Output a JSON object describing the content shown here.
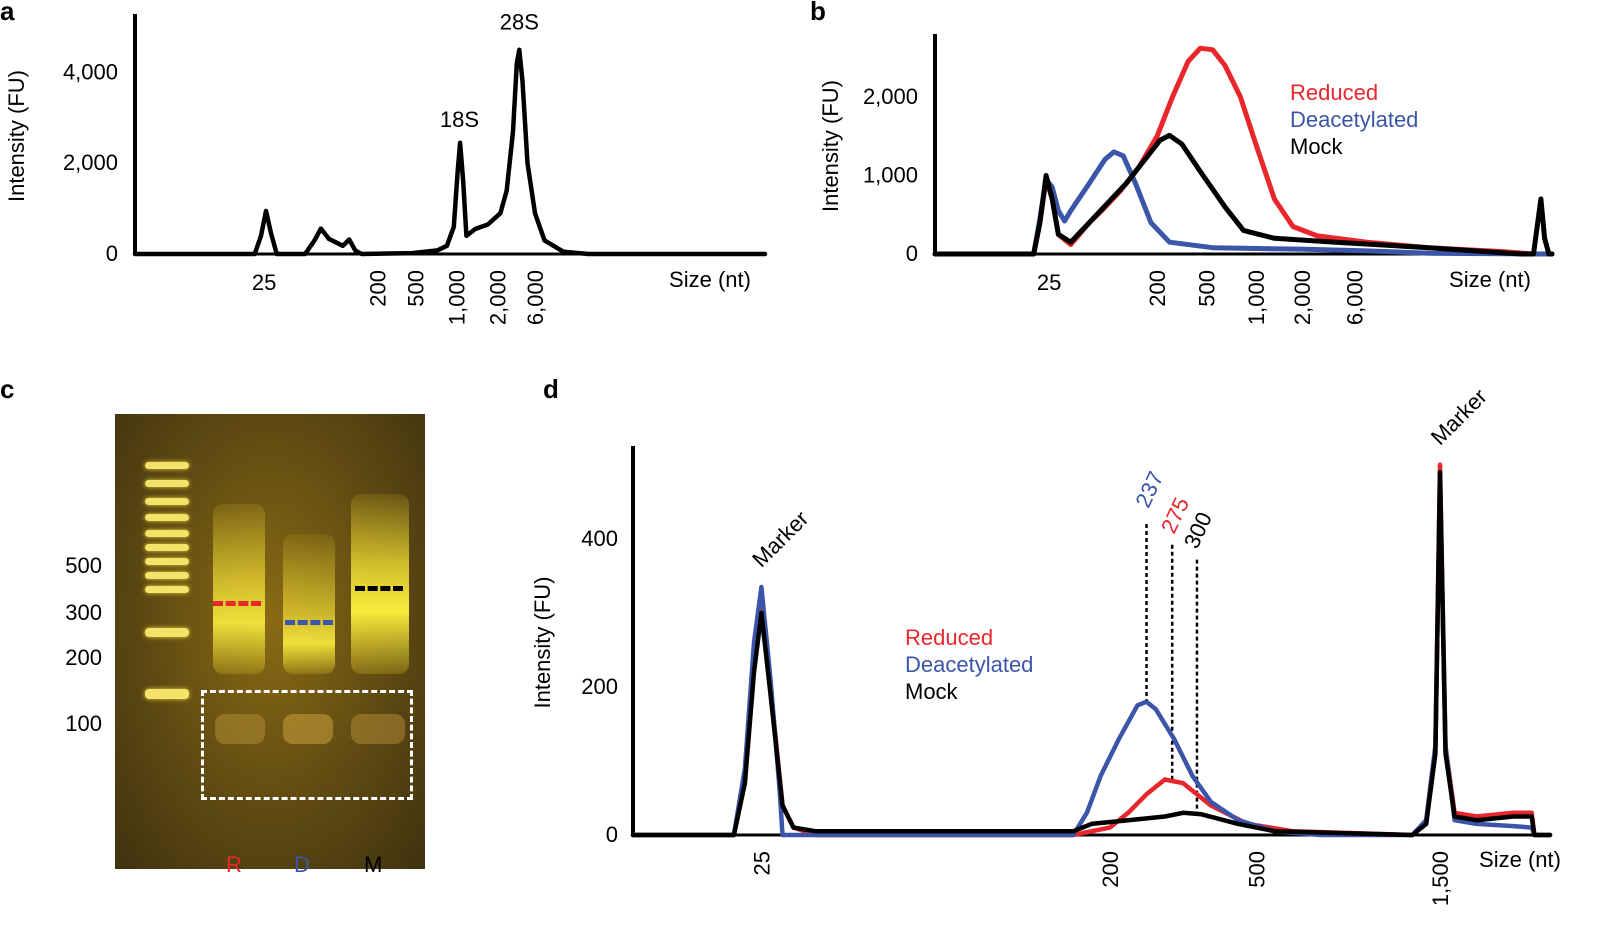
{
  "panels": {
    "a": "a",
    "b": "b",
    "c": "c",
    "d": "d"
  },
  "colors": {
    "reduced": "#e8262b",
    "deacetylated": "#3b56a8",
    "mock": "#000000"
  },
  "chart_data": [
    {
      "id": "a",
      "type": "line",
      "ylabel": "Intensity (FU)",
      "xlabel": "Size (nt)",
      "ylim": [
        0,
        5200
      ],
      "yticks": [
        {
          "v": 0,
          "label": "0"
        },
        {
          "v": 2000,
          "label": "2,000"
        },
        {
          "v": 4000,
          "label": "4,000"
        }
      ],
      "xticks": [
        {
          "t": 20.5,
          "label": "25"
        },
        {
          "t": 38.5,
          "label": "200"
        },
        {
          "t": 44.5,
          "label": "500"
        },
        {
          "t": 51,
          "label": "1,000"
        },
        {
          "t": 57.5,
          "label": "2,000"
        },
        {
          "t": 63.5,
          "label": "6,000"
        }
      ],
      "annotations": [
        {
          "text": "18S",
          "t": 51.5,
          "v": 2800
        },
        {
          "text": "28S",
          "t": 61,
          "v": 4950
        }
      ],
      "series": [
        {
          "name": "RNA",
          "color": "mock",
          "points": [
            [
              0,
              0
            ],
            [
              19,
              0
            ],
            [
              20,
              400
            ],
            [
              20.8,
              950
            ],
            [
              21.6,
              450
            ],
            [
              22.5,
              0
            ],
            [
              27,
              0
            ],
            [
              28.5,
              300
            ],
            [
              29.5,
              560
            ],
            [
              30.8,
              330
            ],
            [
              32,
              250
            ],
            [
              33,
              180
            ],
            [
              34,
              320
            ],
            [
              35,
              70
            ],
            [
              36,
              0
            ],
            [
              44,
              20
            ],
            [
              48,
              80
            ],
            [
              49.5,
              180
            ],
            [
              50.6,
              600
            ],
            [
              51.2,
              1800
            ],
            [
              51.6,
              2450
            ],
            [
              52.1,
              1600
            ],
            [
              52.6,
              400
            ],
            [
              54,
              550
            ],
            [
              56,
              650
            ],
            [
              58,
              900
            ],
            [
              59,
              1400
            ],
            [
              60,
              2700
            ],
            [
              60.6,
              4200
            ],
            [
              61,
              4500
            ],
            [
              61.5,
              3800
            ],
            [
              62.3,
              2000
            ],
            [
              63.5,
              900
            ],
            [
              65,
              300
            ],
            [
              68,
              50
            ],
            [
              72,
              0
            ],
            [
              100,
              0
            ]
          ]
        }
      ]
    },
    {
      "id": "b",
      "type": "line",
      "ylabel": "Intensity (FU)",
      "xlabel": "Size (nt)",
      "ylim": [
        0,
        2750
      ],
      "yticks": [
        {
          "v": 0,
          "label": "0"
        },
        {
          "v": 1000,
          "label": "1,000"
        },
        {
          "v": 2000,
          "label": "2,000"
        }
      ],
      "xticks": [
        {
          "t": 18.5,
          "label": "25"
        },
        {
          "t": 36,
          "label": "200"
        },
        {
          "t": 44,
          "label": "500"
        },
        {
          "t": 52,
          "label": "1,000"
        },
        {
          "t": 59.5,
          "label": "2,000"
        },
        {
          "t": 68,
          "label": "6,000"
        }
      ],
      "legend": [
        {
          "text": "Reduced",
          "color": "reduced"
        },
        {
          "text": "Deacetylated",
          "color": "deacetylated"
        },
        {
          "text": "Mock",
          "color": "mock"
        }
      ],
      "series": [
        {
          "name": "Reduced",
          "color": "reduced",
          "points": [
            [
              0,
              0
            ],
            [
              16,
              0
            ],
            [
              17,
              400
            ],
            [
              18,
              950
            ],
            [
              19,
              700
            ],
            [
              20,
              250
            ],
            [
              22,
              120
            ],
            [
              25,
              400
            ],
            [
              27,
              550
            ],
            [
              30,
              800
            ],
            [
              33,
              1100
            ],
            [
              36,
              1500
            ],
            [
              38.5,
              2000
            ],
            [
              41,
              2450
            ],
            [
              43,
              2620
            ],
            [
              45,
              2600
            ],
            [
              47,
              2400
            ],
            [
              49.5,
              2000
            ],
            [
              52,
              1400
            ],
            [
              55,
              700
            ],
            [
              58,
              350
            ],
            [
              62,
              230
            ],
            [
              70,
              150
            ],
            [
              80,
              80
            ],
            [
              92,
              30
            ],
            [
              97,
              0
            ],
            [
              100,
              0
            ]
          ]
        },
        {
          "name": "Deacetylated",
          "color": "deacetylated",
          "points": [
            [
              0,
              0
            ],
            [
              16,
              0
            ],
            [
              17,
              450
            ],
            [
              18,
              950
            ],
            [
              19,
              850
            ],
            [
              20,
              550
            ],
            [
              21,
              420
            ],
            [
              22,
              550
            ],
            [
              25,
              900
            ],
            [
              27.5,
              1200
            ],
            [
              29,
              1300
            ],
            [
              30.5,
              1250
            ],
            [
              32.5,
              900
            ],
            [
              35,
              400
            ],
            [
              38,
              150
            ],
            [
              45,
              80
            ],
            [
              60,
              60
            ],
            [
              70,
              40
            ],
            [
              80,
              10
            ],
            [
              100,
              0
            ]
          ]
        },
        {
          "name": "Mock",
          "color": "mock",
          "points": [
            [
              0,
              0
            ],
            [
              16,
              0
            ],
            [
              17,
              400
            ],
            [
              18,
              1000
            ],
            [
              19,
              700
            ],
            [
              20,
              250
            ],
            [
              22,
              150
            ],
            [
              25,
              400
            ],
            [
              28,
              650
            ],
            [
              31,
              900
            ],
            [
              34,
              1200
            ],
            [
              36.5,
              1450
            ],
            [
              38,
              1510
            ],
            [
              40,
              1400
            ],
            [
              43,
              1050
            ],
            [
              47,
              600
            ],
            [
              50,
              300
            ],
            [
              55,
              200
            ],
            [
              65,
              150
            ],
            [
              80,
              80
            ],
            [
              95,
              0
            ],
            [
              97,
              0
            ],
            [
              98.2,
              700
            ],
            [
              98.8,
              200
            ],
            [
              99.5,
              0
            ],
            [
              100,
              0
            ]
          ]
        }
      ]
    },
    {
      "id": "d",
      "type": "line",
      "ylabel": "Intensity (FU)",
      "xlabel": "Size (nt)",
      "ylim": [
        0,
        520
      ],
      "yticks": [
        {
          "v": 0,
          "label": "0"
        },
        {
          "v": 200,
          "label": "200"
        },
        {
          "v": 400,
          "label": "400"
        }
      ],
      "xticks": [
        {
          "t": 14,
          "label": "25"
        },
        {
          "t": 52,
          "label": "200"
        },
        {
          "t": 68,
          "label": "500"
        },
        {
          "t": 88,
          "label": "1,500"
        }
      ],
      "annotations": [
        {
          "text": "Marker",
          "t": 14,
          "v": 360,
          "rotate": -45,
          "color": "mock"
        },
        {
          "text": "Marker",
          "t": 88,
          "v": 525,
          "rotate": -45,
          "color": "mock"
        },
        {
          "text": "237",
          "t": 56.2,
          "v": 440,
          "rotate": -65,
          "color": "deacetylated"
        },
        {
          "text": "275",
          "t": 59,
          "v": 405,
          "rotate": -65,
          "color": "reduced"
        },
        {
          "text": "300",
          "t": 61.5,
          "v": 385,
          "rotate": -65,
          "color": "mock"
        }
      ],
      "vlines": [
        {
          "t": 56,
          "v0": 180,
          "v1": 420
        },
        {
          "t": 58.8,
          "v0": 75,
          "v1": 392
        },
        {
          "t": 61.5,
          "v0": 30,
          "v1": 372
        }
      ],
      "legend": [
        {
          "text": "Reduced",
          "color": "reduced"
        },
        {
          "text": "Deacetylated",
          "color": "deacetylated"
        },
        {
          "text": "Mock",
          "color": "mock"
        }
      ],
      "series": [
        {
          "name": "Reduced",
          "color": "reduced",
          "points": [
            [
              0,
              0
            ],
            [
              11,
              0
            ],
            [
              12.2,
              80
            ],
            [
              13.2,
              240
            ],
            [
              14,
              320
            ],
            [
              15,
              200
            ],
            [
              16.3,
              40
            ],
            [
              17.5,
              10
            ],
            [
              20,
              0
            ],
            [
              48,
              0
            ],
            [
              52,
              10
            ],
            [
              54,
              30
            ],
            [
              56,
              55
            ],
            [
              58,
              75
            ],
            [
              60,
              70
            ],
            [
              63,
              40
            ],
            [
              67,
              15
            ],
            [
              72,
              5
            ],
            [
              85,
              0
            ],
            [
              86.5,
              20
            ],
            [
              87.5,
              120
            ],
            [
              88,
              500
            ],
            [
              88.6,
              120
            ],
            [
              89.6,
              30
            ],
            [
              92,
              25
            ],
            [
              96,
              30
            ],
            [
              98,
              30
            ],
            [
              98.3,
              0
            ],
            [
              100,
              0
            ]
          ]
        },
        {
          "name": "Deacetylated",
          "color": "deacetylated",
          "points": [
            [
              0,
              0
            ],
            [
              11,
              0
            ],
            [
              12.2,
              90
            ],
            [
              13.2,
              260
            ],
            [
              14,
              335
            ],
            [
              15,
              210
            ],
            [
              16,
              60
            ],
            [
              16.3,
              0
            ],
            [
              20,
              0
            ],
            [
              48,
              0
            ],
            [
              49.5,
              30
            ],
            [
              51,
              80
            ],
            [
              53,
              130
            ],
            [
              55,
              175
            ],
            [
              56,
              180
            ],
            [
              57,
              170
            ],
            [
              59,
              130
            ],
            [
              61,
              80
            ],
            [
              63,
              45
            ],
            [
              66,
              20
            ],
            [
              70,
              5
            ],
            [
              75,
              0
            ],
            [
              85,
              0
            ],
            [
              86.5,
              20
            ],
            [
              87.5,
              120
            ],
            [
              88,
              480
            ],
            [
              88.6,
              120
            ],
            [
              89.6,
              20
            ],
            [
              92,
              15
            ],
            [
              96,
              12
            ],
            [
              98,
              10
            ],
            [
              98.3,
              0
            ],
            [
              100,
              0
            ]
          ]
        },
        {
          "name": "Mock",
          "color": "mock",
          "points": [
            [
              0,
              0
            ],
            [
              11,
              0
            ],
            [
              12.2,
              70
            ],
            [
              13.2,
              220
            ],
            [
              14,
              300
            ],
            [
              15,
              190
            ],
            [
              16.3,
              40
            ],
            [
              17.5,
              10
            ],
            [
              20,
              5
            ],
            [
              40,
              5
            ],
            [
              48,
              5
            ],
            [
              50,
              15
            ],
            [
              54,
              20
            ],
            [
              58,
              25
            ],
            [
              60,
              30
            ],
            [
              62,
              28
            ],
            [
              66,
              15
            ],
            [
              70,
              5
            ],
            [
              85,
              0
            ],
            [
              86.5,
              15
            ],
            [
              87.5,
              110
            ],
            [
              88,
              490
            ],
            [
              88.6,
              110
            ],
            [
              89.6,
              25
            ],
            [
              92,
              20
            ],
            [
              96,
              25
            ],
            [
              98,
              25
            ],
            [
              98.3,
              0
            ],
            [
              100,
              0
            ]
          ]
        }
      ]
    }
  ],
  "gel": {
    "size_labels": [
      "500",
      "300",
      "200",
      "100"
    ],
    "lanes": [
      {
        "label": "R",
        "color": "reduced"
      },
      {
        "label": "D",
        "color": "deacetylated"
      },
      {
        "label": "M",
        "color": "mock"
      }
    ]
  }
}
